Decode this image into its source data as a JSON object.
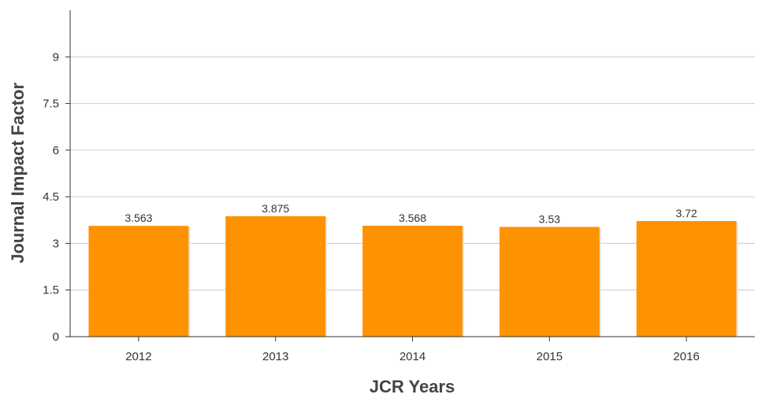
{
  "chart_data": {
    "type": "bar",
    "categories": [
      "2012",
      "2013",
      "2014",
      "2015",
      "2016"
    ],
    "values": [
      3.563,
      3.875,
      3.568,
      3.53,
      3.72
    ],
    "data_labels": [
      "3.563",
      "3.875",
      "3.568",
      "3.53",
      "3.72"
    ],
    "yticks": [
      "0",
      "1.5",
      "3",
      "4.5",
      "6",
      "7.5",
      "9"
    ],
    "ytick_values": [
      0,
      1.5,
      3,
      4.5,
      6,
      7.5,
      9
    ],
    "xlabel": "JCR Years",
    "ylabel": "Journal Impact Factor",
    "ylim": [
      0,
      10.5
    ],
    "grid": true,
    "bar_color": "#ff9200"
  }
}
